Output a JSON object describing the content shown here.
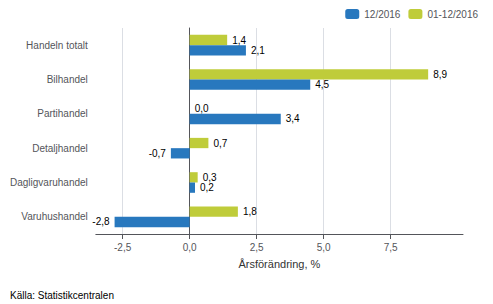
{
  "chart_data": {
    "type": "bar",
    "orientation": "horizontal",
    "categories": [
      "Varuhushandel",
      "Dagligvaruhandel",
      "Detaljhandel",
      "Partihandel",
      "Bilhandel",
      "Handeln totalt"
    ],
    "series": [
      {
        "name": "12/2016",
        "color": "#2878BE",
        "values": [
          -2.8,
          0.2,
          -0.7,
          3.4,
          4.5,
          2.1
        ],
        "value_labels": [
          "-2,8",
          "0,2",
          "-0,7",
          "3,4",
          "4,5",
          "2,1"
        ]
      },
      {
        "name": "01-12/2016",
        "color": "#BFCC3A",
        "values": [
          1.8,
          0.3,
          0.7,
          0.0,
          8.9,
          1.4
        ],
        "value_labels": [
          "1,8",
          "0,3",
          "0,7",
          "0,0",
          "8,9",
          "1,4"
        ]
      }
    ],
    "xlabel": "Årsförändring, %",
    "source": "Källa: Statistikcentralen",
    "xlim": [
      -3.5,
      10.2
    ],
    "xticks": [
      {
        "value": -2.5,
        "label": "-2,5"
      },
      {
        "value": 0.0,
        "label": "0,0"
      },
      {
        "value": 2.5,
        "label": "2,5"
      },
      {
        "value": 5.0,
        "label": "5,0"
      },
      {
        "value": 7.5,
        "label": "7,5"
      }
    ],
    "grid": true,
    "legend": "upper right",
    "data_labels": true
  }
}
